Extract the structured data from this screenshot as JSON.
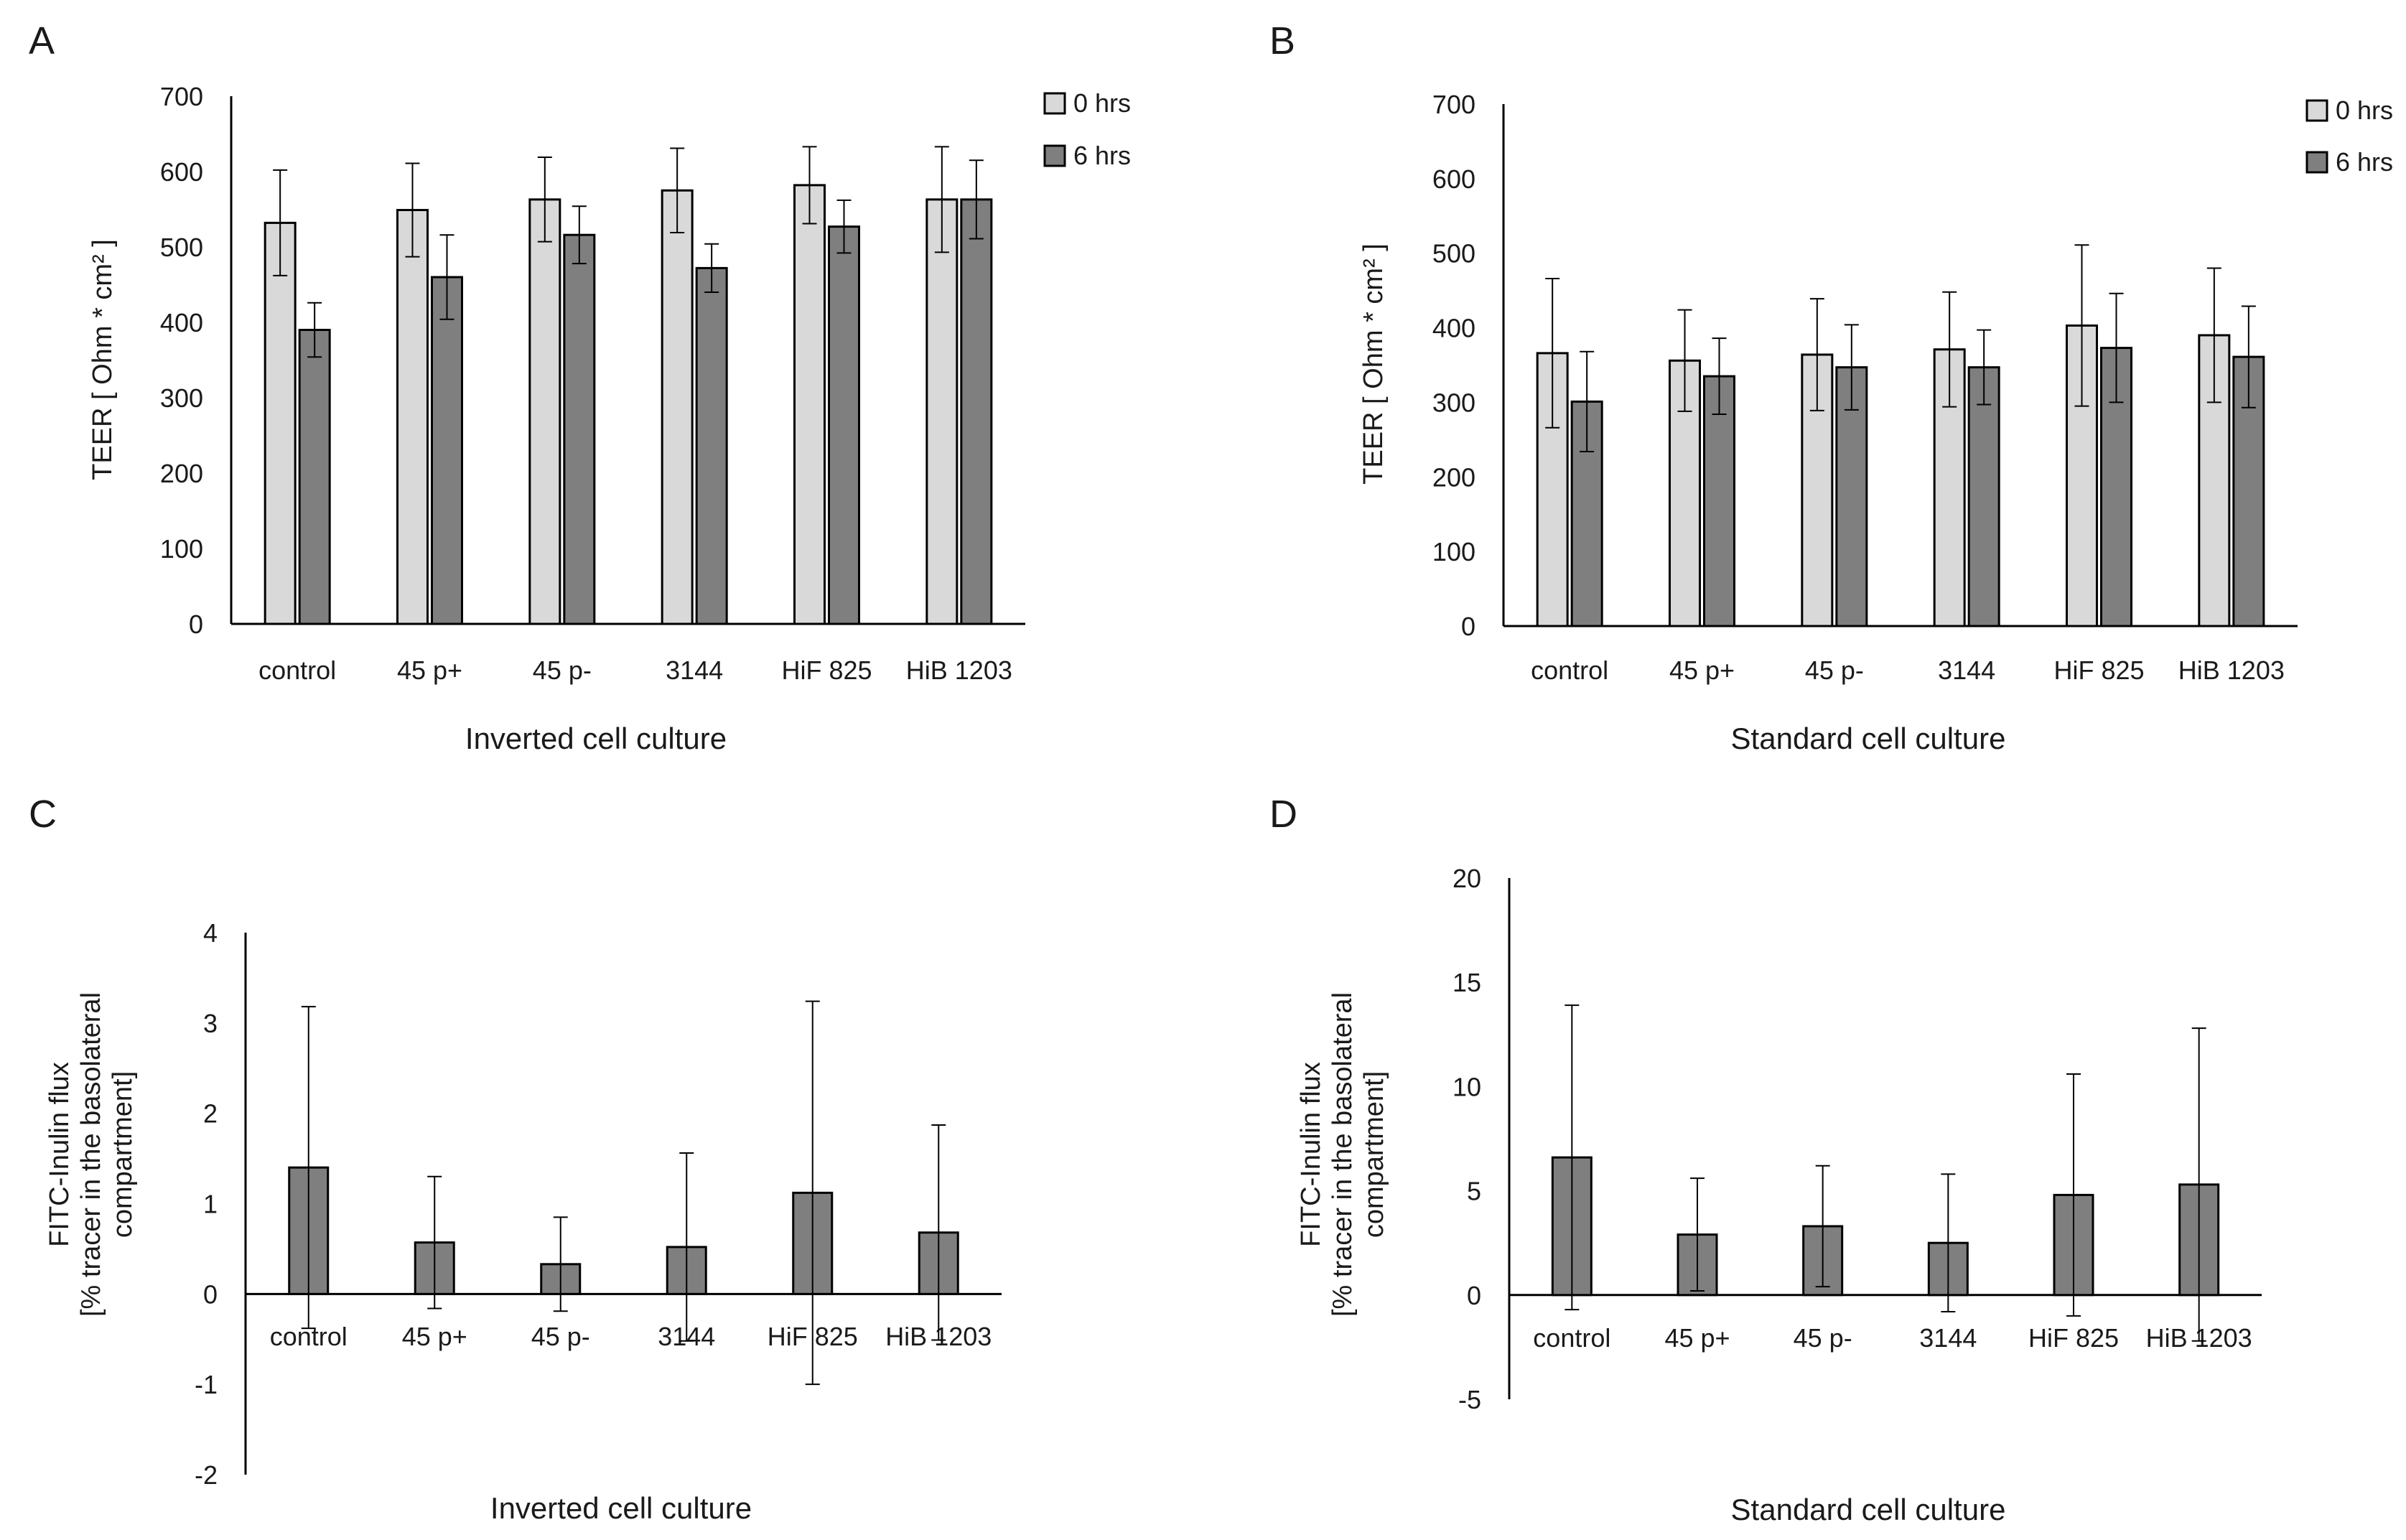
{
  "figure": {
    "panel_labels": [
      "A",
      "B",
      "C",
      "D"
    ],
    "colors": {
      "bar_0hrs": "#d9d9d9",
      "bar_6hrs": "#7f7f7f",
      "stroke": "#000000",
      "text": "#1a1a1a"
    }
  },
  "chart_data": [
    {
      "panel": "A",
      "type": "bar",
      "categories": [
        "control",
        "45 p+",
        "45 p-",
        "3144",
        "HiF 825",
        "HiB 1203"
      ],
      "series": [
        {
          "name": "0 hrs",
          "values": [
            532,
            549,
            563,
            575,
            582,
            563
          ],
          "errors": [
            70,
            62,
            56,
            56,
            51,
            70
          ]
        },
        {
          "name": "6 hrs",
          "values": [
            390,
            460,
            516,
            472,
            527,
            563
          ],
          "errors": [
            36,
            56,
            38,
            32,
            35,
            52
          ]
        }
      ],
      "xlabel": "Inverted cell culture",
      "ylabel": "TEER [ Ohm * cm² ]",
      "ylim": [
        0,
        700
      ],
      "yticks": [
        0,
        100,
        200,
        300,
        400,
        500,
        600,
        700
      ],
      "legend_position": "top-right",
      "grid": false
    },
    {
      "panel": "B",
      "type": "bar",
      "categories": [
        "control",
        "45 p+",
        "45 p-",
        "3144",
        "HiF 825",
        "HiB 1203"
      ],
      "series": [
        {
          "name": "0 hrs",
          "values": [
            366,
            356,
            364,
            371,
            403,
            390
          ],
          "errors": [
            100,
            68,
            75,
            77,
            108,
            90
          ]
        },
        {
          "name": "6 hrs",
          "values": [
            301,
            335,
            347,
            347,
            373,
            361
          ],
          "errors": [
            67,
            51,
            57,
            50,
            73,
            68
          ]
        }
      ],
      "xlabel": "Standard cell culture",
      "ylabel": "TEER [ Ohm * cm² ]",
      "ylim": [
        0,
        700
      ],
      "yticks": [
        0,
        100,
        200,
        300,
        400,
        500,
        600,
        700
      ],
      "legend_position": "top-right",
      "grid": false
    },
    {
      "panel": "C",
      "type": "bar",
      "categories": [
        "control",
        "45 p+",
        "45 p-",
        "3144",
        "HiF 825",
        "HiB 1203"
      ],
      "series": [
        {
          "values": [
            1.4,
            0.57,
            0.33,
            0.52,
            1.12,
            0.68
          ],
          "errors": [
            1.78,
            0.73,
            0.52,
            1.04,
            2.12,
            1.19
          ]
        }
      ],
      "xlabel": "Inverted cell culture",
      "ylabel_lines": [
        "FITC-Inulin flux",
        "[% tracer in the basolateral",
        "compartment]"
      ],
      "ylim": [
        -2,
        4
      ],
      "yticks": [
        -2,
        -1,
        0,
        1,
        2,
        3,
        4
      ],
      "grid": false
    },
    {
      "panel": "D",
      "type": "bar",
      "categories": [
        "control",
        "45 p+",
        "45 p-",
        "3144",
        "HiF 825",
        "HiB 1203"
      ],
      "series": [
        {
          "values": [
            6.6,
            2.9,
            3.3,
            2.5,
            4.8,
            5.3
          ],
          "errors": [
            7.3,
            2.7,
            2.9,
            3.3,
            5.8,
            7.5
          ]
        }
      ],
      "xlabel": "Standard cell culture",
      "ylabel_lines": [
        "FITC-Inulin flux",
        "[% tracer in the basolateral",
        "compartment]"
      ],
      "ylim": [
        -5,
        20
      ],
      "yticks": [
        -5,
        0,
        5,
        10,
        15,
        20
      ],
      "grid": false
    }
  ]
}
